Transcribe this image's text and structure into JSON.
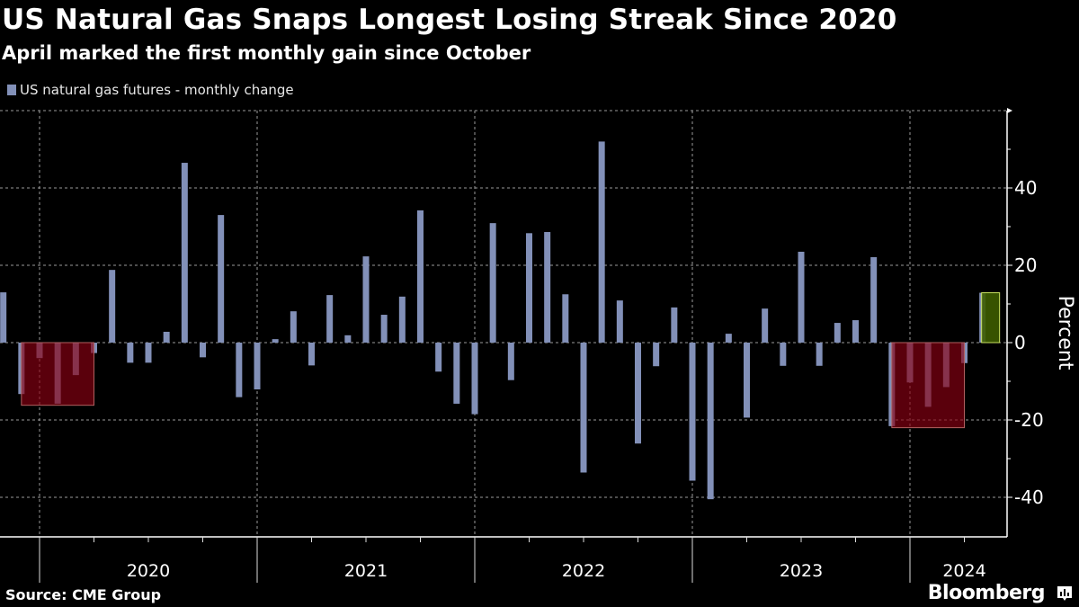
{
  "header": {
    "title": "US Natural Gas Snaps Longest Losing Streak Since 2020",
    "subtitle": "April marked the first monthly gain since October"
  },
  "footer": {
    "source": "Source: CME Group",
    "brand": "Bloomberg",
    "brand_icon": "bloomberg-chart-icon"
  },
  "colors": {
    "bar": "#8290b8",
    "loss_highlight": "#8a0012",
    "gain_highlight": "#3d5c00",
    "gain_highlight_border": "#c8e060",
    "background": "#000000"
  },
  "chart_data": {
    "type": "bar",
    "title": "US Natural Gas Snaps Longest Losing Streak Since 2020",
    "subtitle": "April marked the first monthly gain since October",
    "ylabel": "Percent",
    "xlabel": "",
    "ylim": [
      -50,
      60
    ],
    "yticks": [
      -40,
      -20,
      0,
      20,
      40
    ],
    "xtick_labels": [
      "2020",
      "2021",
      "2022",
      "2023",
      "2024"
    ],
    "grid": true,
    "legend_position": "top-left",
    "series": [
      {
        "name": "US natural gas futures - monthly change",
        "start_month": "2019-10",
        "end_month": "2024-04",
        "values": [
          13.0,
          -13.3,
          -4.0,
          -15.8,
          -8.4,
          -2.7,
          18.8,
          -5.2,
          -5.2,
          2.8,
          46.5,
          -3.8,
          33.0,
          -14.1,
          -12.1,
          0.9,
          8.1,
          -5.9,
          12.3,
          1.9,
          22.3,
          7.2,
          11.9,
          34.2,
          -7.5,
          -15.8,
          -18.5,
          30.9,
          -9.7,
          28.3,
          28.6,
          12.5,
          -33.6,
          52.0,
          10.9,
          -26.1,
          -6.1,
          9.1,
          -35.7,
          -40.5,
          2.3,
          -19.4,
          8.8,
          -6.0,
          23.5,
          -6.0,
          5.1,
          5.8,
          22.1,
          -21.6,
          -10.3,
          -16.6,
          -11.5,
          -5.3,
          12.9
        ]
      }
    ],
    "highlights": [
      {
        "type": "loss-streak",
        "from": "2019-11",
        "to": "2020-03"
      },
      {
        "type": "loss-streak",
        "from": "2023-11",
        "to": "2024-03"
      },
      {
        "type": "gain",
        "from": "2024-04",
        "to": "2024-04"
      }
    ]
  }
}
